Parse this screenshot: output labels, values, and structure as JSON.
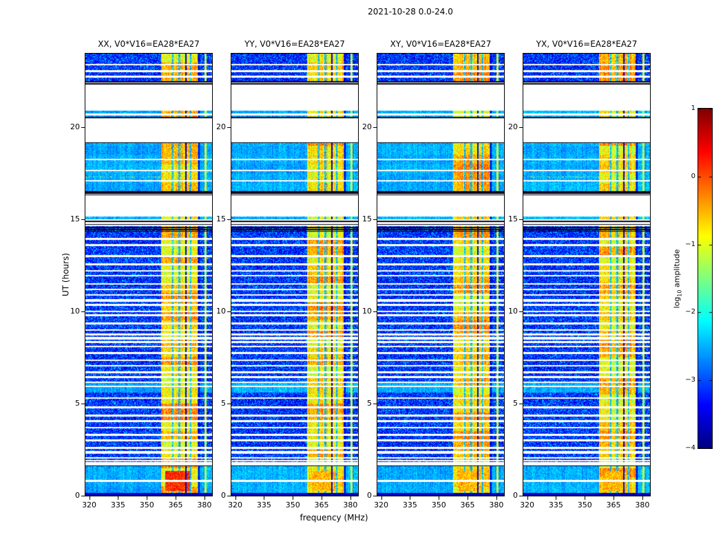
{
  "figure": {
    "title": "2021-10-28 0.0-24.0",
    "xlabel": "frequency (MHz)",
    "ylabel": "UT (hours)",
    "colorbar": {
      "label_pre": "log",
      "label_sub": "10",
      "label_post": " amplitude",
      "ticks": [
        1,
        0,
        -1,
        -2,
        -3,
        -4
      ],
      "vmin": -4,
      "vmax": 1
    }
  },
  "chart_data": {
    "type": "heatmap",
    "x_range_mhz": [
      318,
      384
    ],
    "y_range_hours": [
      0,
      24
    ],
    "x_ticks_mhz": [
      320,
      335,
      350,
      365,
      380
    ],
    "y_ticks_hours": [
      0,
      5,
      10,
      15,
      20
    ],
    "color_scale": {
      "colormap": "jet",
      "vmin": -4,
      "vmax": 1
    },
    "panels": [
      {
        "title": "XX, V0*V16=EA28*EA27",
        "seed": 11,
        "bottom_blob": 1.0,
        "dotted_line": true
      },
      {
        "title": "YY, V0*V16=EA28*EA27",
        "seed": 22,
        "bottom_blob": 0.35,
        "dotted_line": false
      },
      {
        "title": "XY, V0*V16=EA28*EA27",
        "seed": 33,
        "bottom_blob": 0.35,
        "dotted_line": false
      },
      {
        "title": "YX, V0*V16=EA28*EA27",
        "seed": 44,
        "bottom_blob": 0.35,
        "dotted_line": true
      }
    ],
    "rfi": {
      "band_mhz": [
        357.3,
        376.4
      ],
      "band_gaps_mhz": [
        [
          363.2,
          364.0
        ],
        [
          366.6,
          367.4
        ],
        [
          372.5,
          373.3
        ]
      ],
      "dark_lines_mhz": [
        [
          370.1,
          370.6
        ],
        [
          376.9,
          377.6
        ]
      ],
      "narrow_band_mhz": [
        380.2,
        381.3
      ]
    },
    "no_data_gaps_hours": [
      [
        20.9,
        22.32
      ],
      [
        19.2,
        20.5
      ],
      [
        15.15,
        16.55
      ],
      [
        14.62,
        15.02
      ],
      [
        1.66,
        1.84
      ]
    ],
    "cyan_regions_hours": [
      [
        16.55,
        19.15
      ],
      [
        5.6,
        6.2
      ],
      [
        0.1,
        1.62
      ],
      [
        20.5,
        20.9
      ],
      [
        15.02,
        15.15
      ]
    ],
    "white_lines": [
      [
        23.4,
        0.05
      ],
      [
        23.05,
        0.05
      ],
      [
        22.75,
        0.05
      ],
      [
        22.41,
        0.04
      ],
      [
        20.7,
        0.045
      ],
      [
        18.25,
        0.04
      ],
      [
        17.65,
        0.04
      ],
      [
        17.1,
        0.04
      ],
      [
        13.95,
        0.05
      ],
      [
        13.6,
        0.05
      ],
      [
        13.0,
        0.05
      ],
      [
        12.55,
        0.05
      ],
      [
        12.2,
        0.05
      ],
      [
        11.95,
        0.05
      ],
      [
        11.5,
        0.05
      ],
      [
        11.2,
        0.05
      ],
      [
        10.9,
        0.05
      ],
      [
        10.6,
        0.09
      ],
      [
        10.35,
        0.05
      ],
      [
        10.0,
        0.05
      ],
      [
        9.8,
        0.05
      ],
      [
        9.35,
        0.05
      ],
      [
        9.0,
        0.05
      ],
      [
        8.75,
        0.05
      ],
      [
        8.55,
        0.09
      ],
      [
        8.35,
        0.05
      ],
      [
        8.1,
        0.05
      ],
      [
        7.75,
        0.05
      ],
      [
        7.35,
        0.05
      ],
      [
        7.05,
        0.05
      ],
      [
        6.7,
        0.05
      ],
      [
        6.45,
        0.05
      ],
      [
        6.15,
        0.04
      ],
      [
        5.95,
        0.04
      ],
      [
        5.3,
        0.05
      ],
      [
        4.8,
        0.05
      ],
      [
        4.35,
        0.05
      ],
      [
        4.05,
        0.05
      ],
      [
        3.7,
        0.05
      ],
      [
        3.3,
        0.05
      ],
      [
        3.0,
        0.05
      ],
      [
        2.6,
        0.05
      ],
      [
        2.35,
        0.09
      ],
      [
        2.05,
        0.05
      ],
      [
        1.9,
        0.04
      ],
      [
        0.8,
        0.04
      ]
    ],
    "black_lines": [
      [
        22.36,
        0.035
      ],
      [
        22.46,
        0.035
      ],
      [
        20.52,
        0.04
      ],
      [
        19.17,
        0.03
      ],
      [
        16.33,
        0.035
      ],
      [
        16.41,
        0.035
      ],
      [
        16.49,
        0.035
      ],
      [
        14.9,
        0.03
      ],
      [
        14.72,
        0.03
      ],
      [
        14.55,
        0.035
      ],
      [
        14.45,
        0.035
      ],
      [
        14.35,
        0.035
      ],
      [
        1.63,
        0.03
      ]
    ],
    "red_dotted_line_hour": 17.3,
    "bottom_blob": {
      "hours": [
        0.25,
        1.35
      ],
      "mhz": [
        359.5,
        372.5
      ]
    }
  }
}
